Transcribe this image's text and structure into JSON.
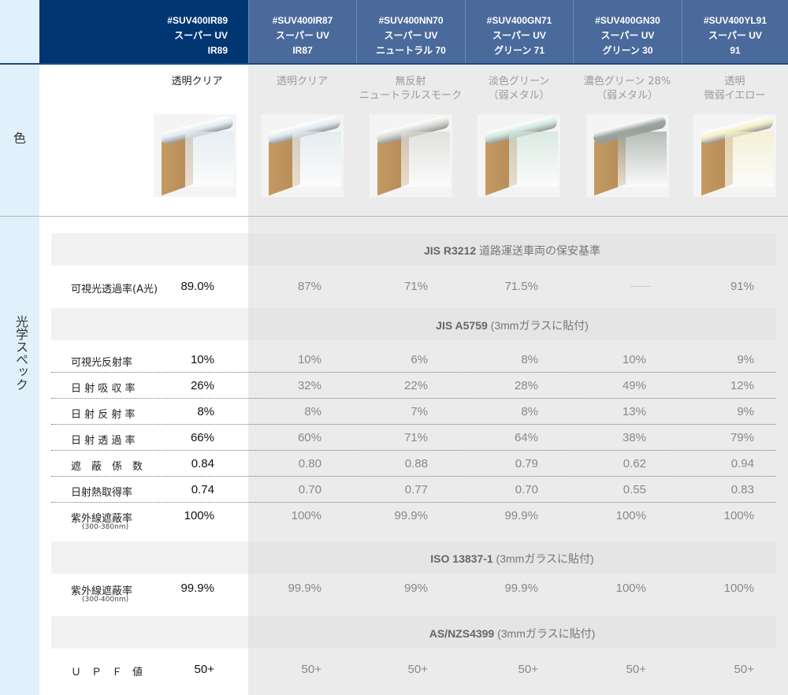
{
  "products": [
    {
      "code": "#SUV400IR89",
      "line": "スーパー UV",
      "variant": "IR89",
      "color": "透明クリア",
      "tint": "#dfeaf0"
    },
    {
      "code": "#SUV400IR87",
      "line": "スーパー UV",
      "variant": "IR87",
      "color": "透明クリア",
      "tint": "#dfe9ee"
    },
    {
      "code": "#SUV400NN70",
      "line": "スーパー UV",
      "variant": "ニュートラル 70",
      "color": "無反射\nニュートラルスモーク",
      "tint": "#d8d8d4"
    },
    {
      "code": "#SUV400GN71",
      "line": "スーパー UV",
      "variant": "グリーン 71",
      "color": "淡色グリーン\n（弱メタル）",
      "tint": "#cfe6da"
    },
    {
      "code": "#SUV400GN30",
      "line": "スーパー UV",
      "variant": "グリーン 30",
      "color": "濃色グリーン 28%\n（弱メタル）",
      "tint": "#9aa59c"
    },
    {
      "code": "#SUV400YL91",
      "line": "スーパー UV",
      "variant": "91",
      "color": "透明\n微弱イエロー",
      "tint": "#f3efc8"
    }
  ],
  "side_labels": {
    "color": "色",
    "spec": "光学スペック"
  },
  "sections": [
    {
      "title_bold": "JIS R3212",
      "title_rest": "  道路運送車両の保安基準",
      "rows": [
        {
          "label": "可視光透過率(A光)",
          "values": [
            "89.0%",
            "87%",
            "71%",
            "71.5%",
            "—",
            "91%"
          ]
        }
      ]
    },
    {
      "title_bold": "JIS A5759",
      "title_rest": " (3mmガラスに貼付)",
      "rows": [
        {
          "label": "可視光反射率",
          "values": [
            "10%",
            "10%",
            "6%",
            "8%",
            "10%",
            "9%"
          ]
        },
        {
          "label": "日 射 吸 収 率",
          "values": [
            "26%",
            "32%",
            "22%",
            "28%",
            "49%",
            "12%"
          ]
        },
        {
          "label": "日 射 反 射 率",
          "values": [
            "8%",
            "8%",
            "7%",
            "8%",
            "13%",
            "9%"
          ]
        },
        {
          "label": "日 射 透 過 率",
          "values": [
            "66%",
            "60%",
            "71%",
            "64%",
            "38%",
            "79%"
          ]
        },
        {
          "label": "遮　蔽　係　数",
          "values": [
            "0.84",
            "0.80",
            "0.88",
            "0.79",
            "0.62",
            "0.94"
          ]
        },
        {
          "label": "日射熱取得率",
          "values": [
            "0.74",
            "0.70",
            "0.77",
            "0.70",
            "0.55",
            "0.83"
          ]
        },
        {
          "label": "紫外線遮蔽率",
          "sub": "(300-380nm)",
          "values": [
            "100%",
            "100%",
            "99.9%",
            "99.9%",
            "100%",
            "100%"
          ]
        }
      ]
    },
    {
      "title_bold": "ISO 13837-1",
      "title_rest": " (3mmガラスに貼付)",
      "rows": [
        {
          "label": "紫外線遮蔽率",
          "sub": "(300-400nm)",
          "values": [
            "99.9%",
            "99.9%",
            "99%",
            "99.9%",
            "100%",
            "100%"
          ]
        }
      ]
    },
    {
      "title_bold": "AS/NZS4399",
      "title_rest": " (3mmガラスに貼付)",
      "rows": [
        {
          "label": "Ｕ　Ｐ　Ｆ　値",
          "values": [
            "50+",
            "50+",
            "50+",
            "50+",
            "50+",
            "50+"
          ]
        }
      ]
    }
  ]
}
